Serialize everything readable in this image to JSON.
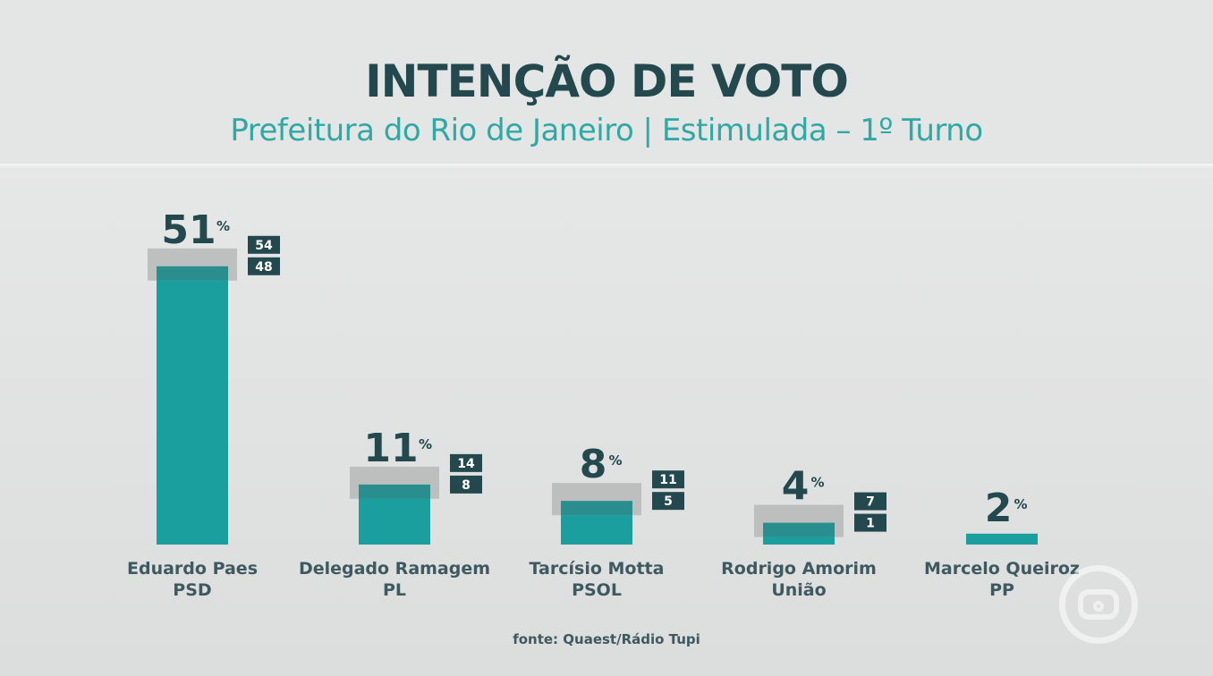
{
  "chart_data": {
    "type": "bar",
    "title": "INTENÇÃO DE VOTO",
    "subtitle": "Prefeitura do Rio de Janeiro | Estimulada – 1º Turno",
    "percent_symbol": "%",
    "ylim": [
      0,
      60
    ],
    "categories": [
      {
        "name": "Eduardo Paes",
        "party": "PSD"
      },
      {
        "name": "Delegado Ramagem",
        "party": "PL"
      },
      {
        "name": "Tarcísio Motta",
        "party": "PSOL"
      },
      {
        "name": "Rodrigo Amorim",
        "party": "União"
      },
      {
        "name": "Marcelo Queiroz",
        "party": "PP"
      }
    ],
    "series": [
      {
        "values": [
          51,
          11,
          8,
          4,
          2
        ],
        "margin_high": [
          54,
          14,
          11,
          7,
          null
        ],
        "margin_low": [
          48,
          8,
          5,
          1,
          null
        ]
      }
    ],
    "source": "fonte: Quaest/Rádio Tupi"
  },
  "colors": {
    "bar": "#1b9f9e",
    "bar_overlap": "#2a8e8e",
    "margin_band": "#b9bbbb",
    "value_text": "#23494f",
    "label_text": "#3e5a60",
    "badge_bg": "#23494f",
    "badge_text": "#ffffff"
  }
}
